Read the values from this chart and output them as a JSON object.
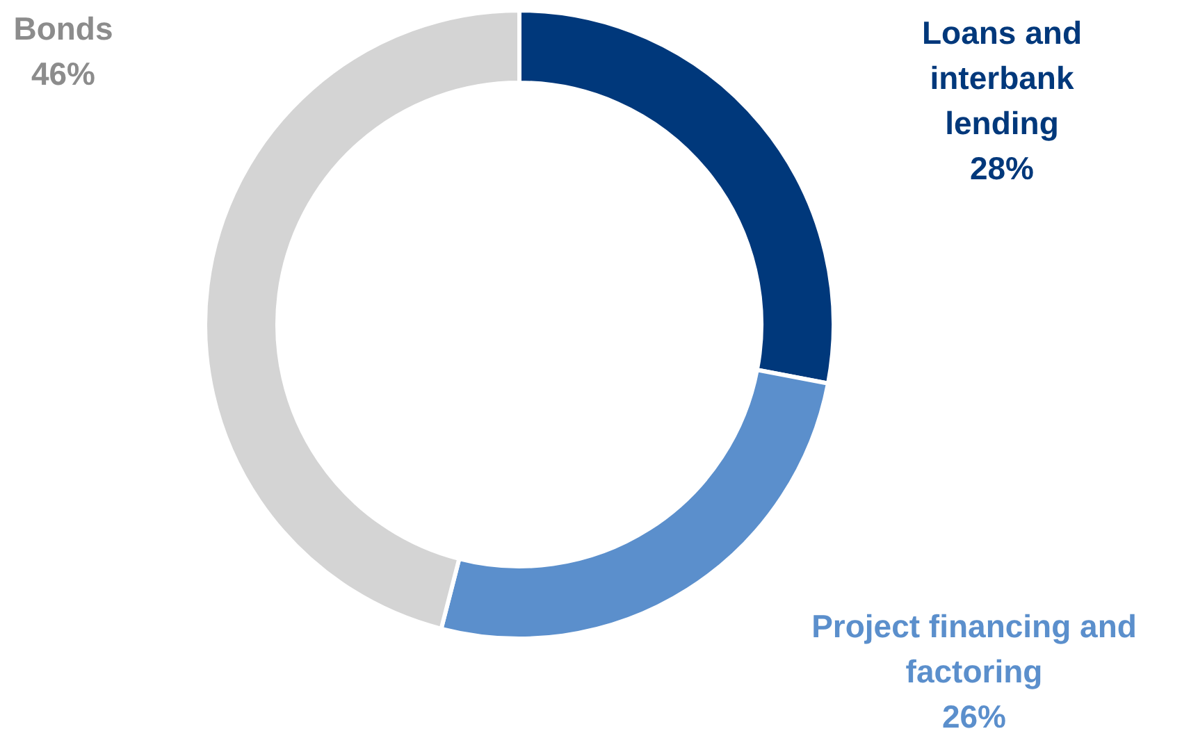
{
  "chart_data": {
    "type": "donut",
    "categories": [
      "Loans and interbank lending",
      "Project financing and factoring",
      "Bonds"
    ],
    "values": [
      28,
      26,
      46
    ],
    "colors": [
      "#00387b",
      "#5b8fcc",
      "#d4d4d4"
    ],
    "value_labels": [
      "28%",
      "26%",
      "46%"
    ]
  }
}
